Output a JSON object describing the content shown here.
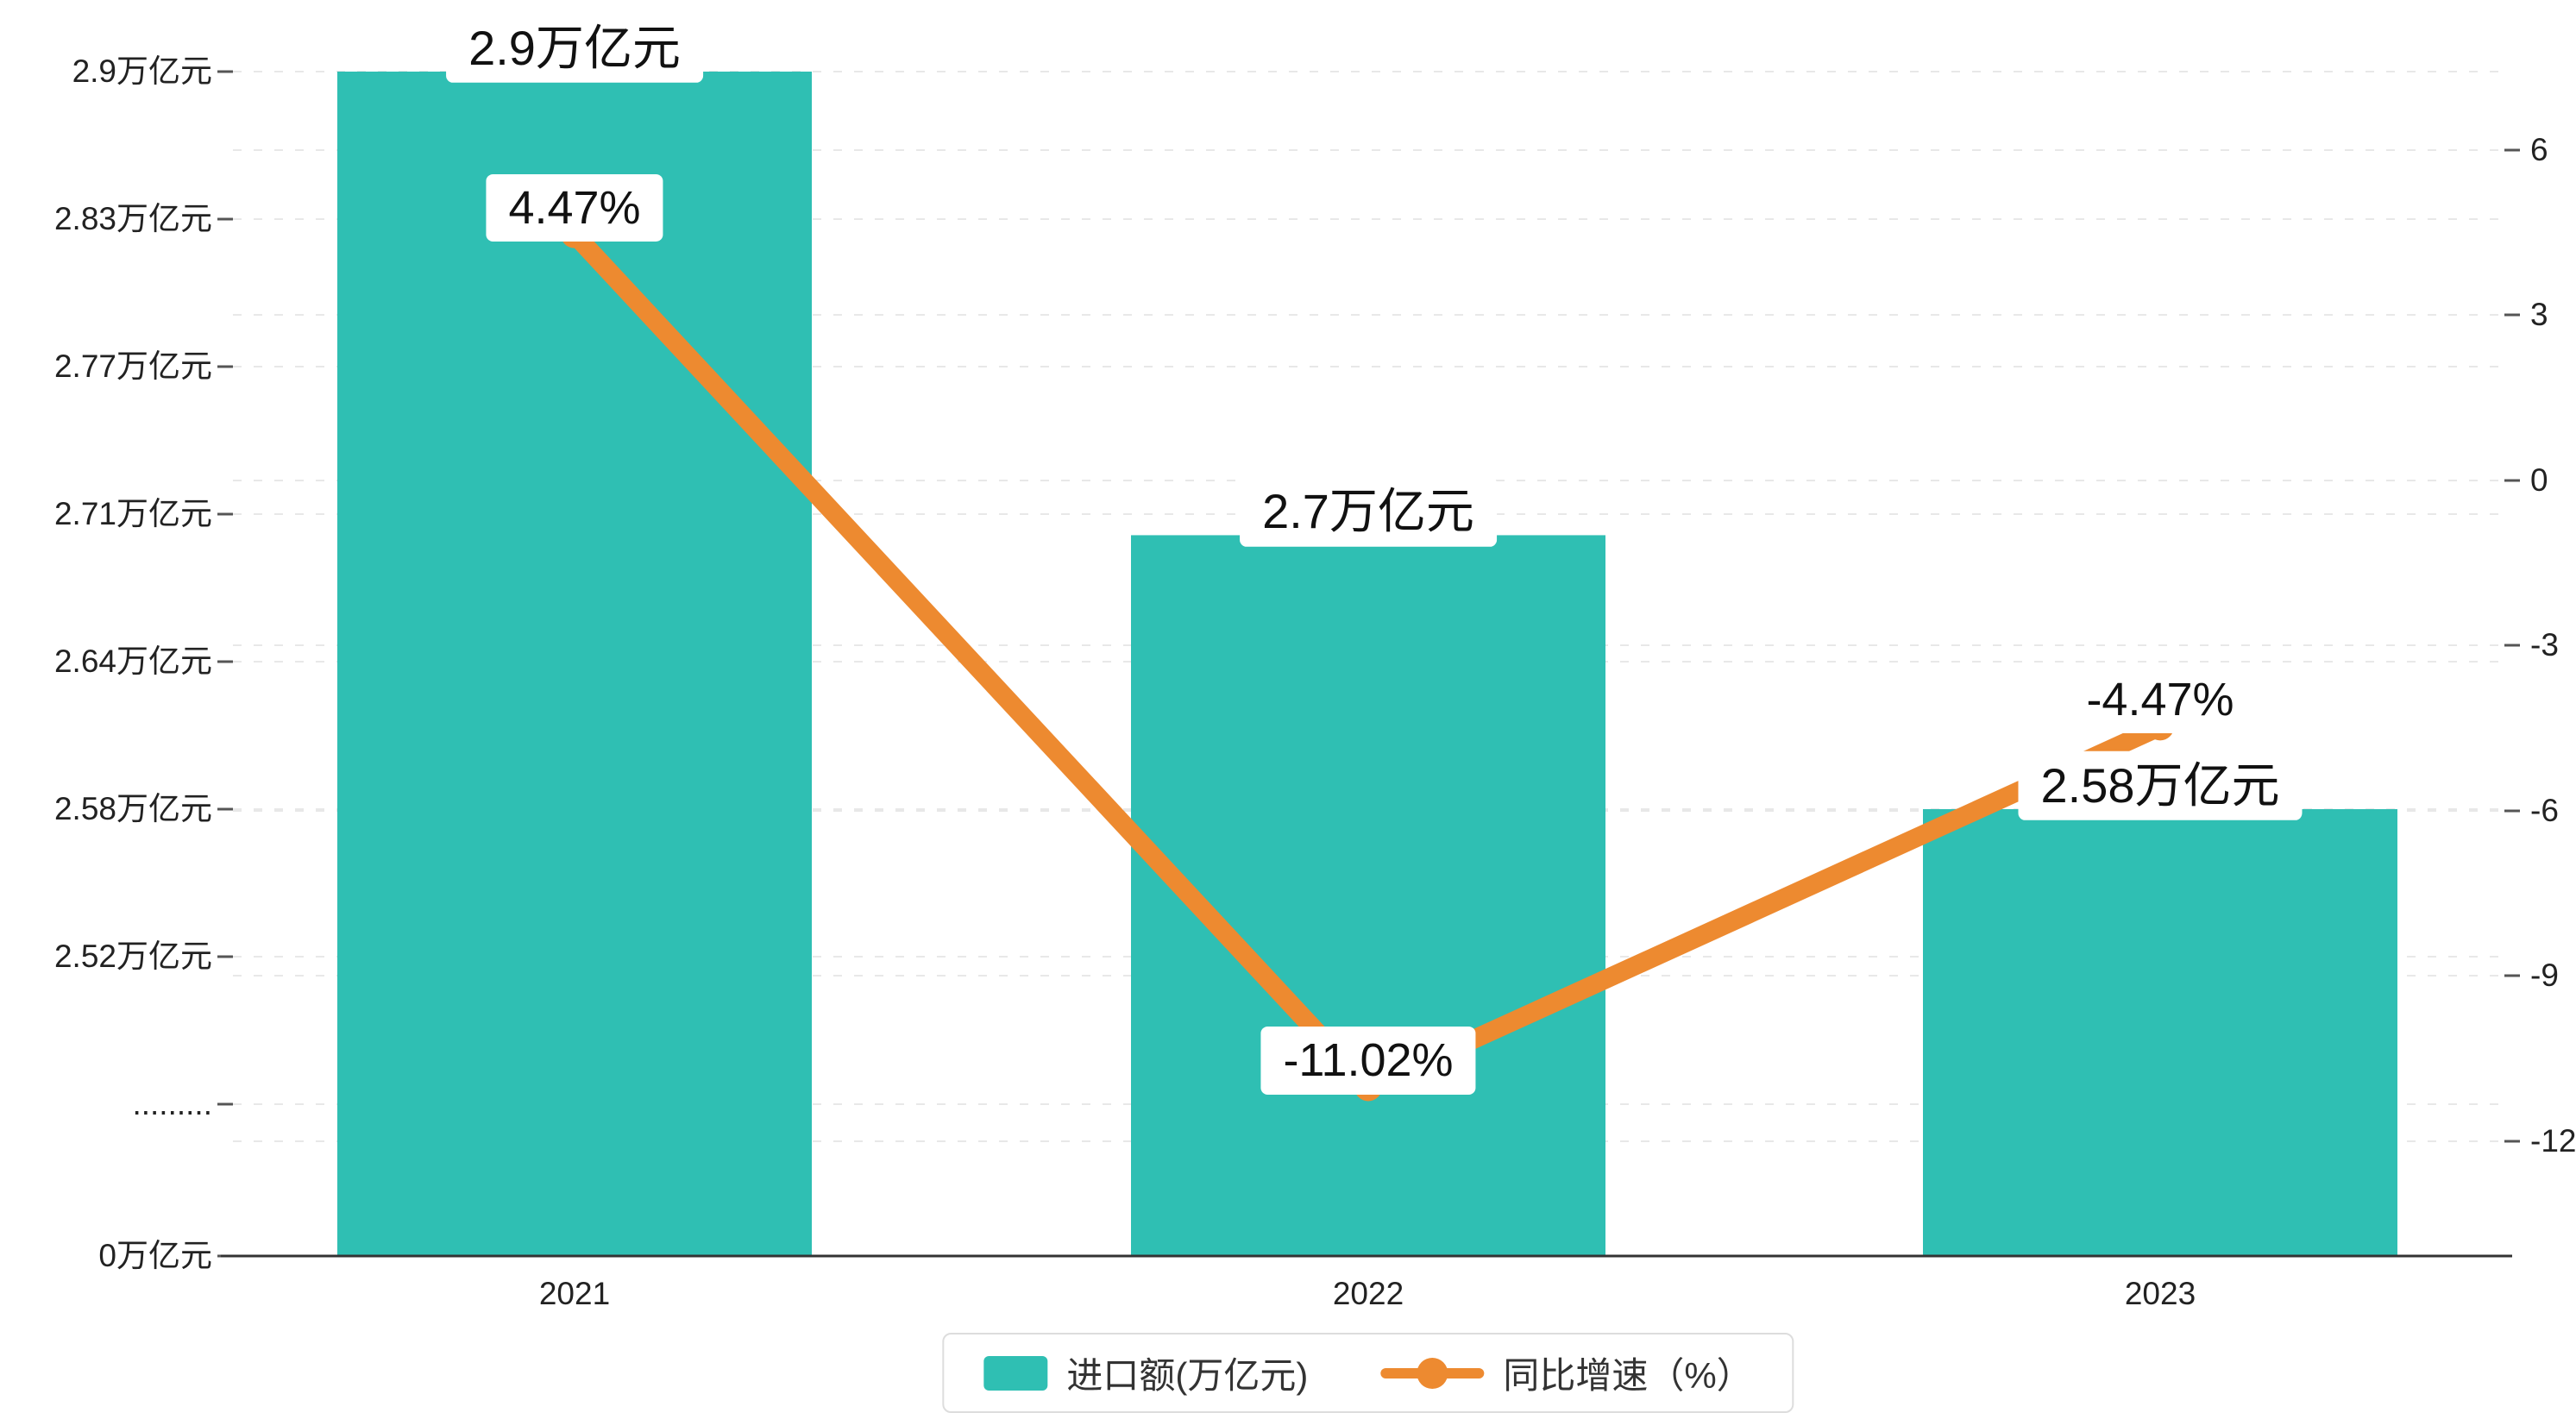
{
  "chart_data": {
    "type": "bar+line",
    "categories": [
      "2021",
      "2022",
      "2023"
    ],
    "series": [
      {
        "name": "进口额(万亿元)",
        "type": "bar",
        "color": "#2FBFB3",
        "values": [
          2.9,
          2.7,
          2.58
        ],
        "labels": [
          "2.9万亿元",
          "2.7万亿元",
          "2.58万亿元"
        ]
      },
      {
        "name": "同比增速（%）",
        "type": "line",
        "color": "#ED8A30",
        "values": [
          4.47,
          -11.02,
          -4.47
        ],
        "labels": [
          "4.47%",
          "-11.02%",
          "-4.47%"
        ]
      }
    ],
    "left_axis": {
      "tick_labels": [
        "2.9万亿元",
        "2.83万亿元",
        "2.77万亿元",
        "2.71万亿元",
        "2.64万亿元",
        "2.58万亿元",
        "2.52万亿元",
        ".........",
        "0万亿元"
      ],
      "tick_values": [
        2.9,
        2.83,
        2.77,
        2.71,
        2.64,
        2.58,
        2.52
      ],
      "axis_break": true
    },
    "right_axis": {
      "tick_labels": [
        "6",
        "3",
        "0",
        "-3",
        "-6",
        "-9",
        "-12"
      ],
      "tick_values": [
        6,
        3,
        0,
        -3,
        -6,
        -9,
        -12
      ]
    },
    "legend": {
      "position": "bottom",
      "items": [
        "进口额(万亿元)",
        "同比增速（%）"
      ]
    },
    "grid": "dashed horizontal gridlines",
    "xlabel": "",
    "ylabel_left": "万亿元",
    "ylabel_right": "%"
  },
  "colors": {
    "bar": "#2FBFB3",
    "line": "#ED8A30",
    "grid": "#e8e8e8",
    "axis": "#333333",
    "tick": "#555555",
    "text": "#222222",
    "legend_border": "#dddddd",
    "label_bg": "#ffffff",
    "background": "#ffffff"
  }
}
